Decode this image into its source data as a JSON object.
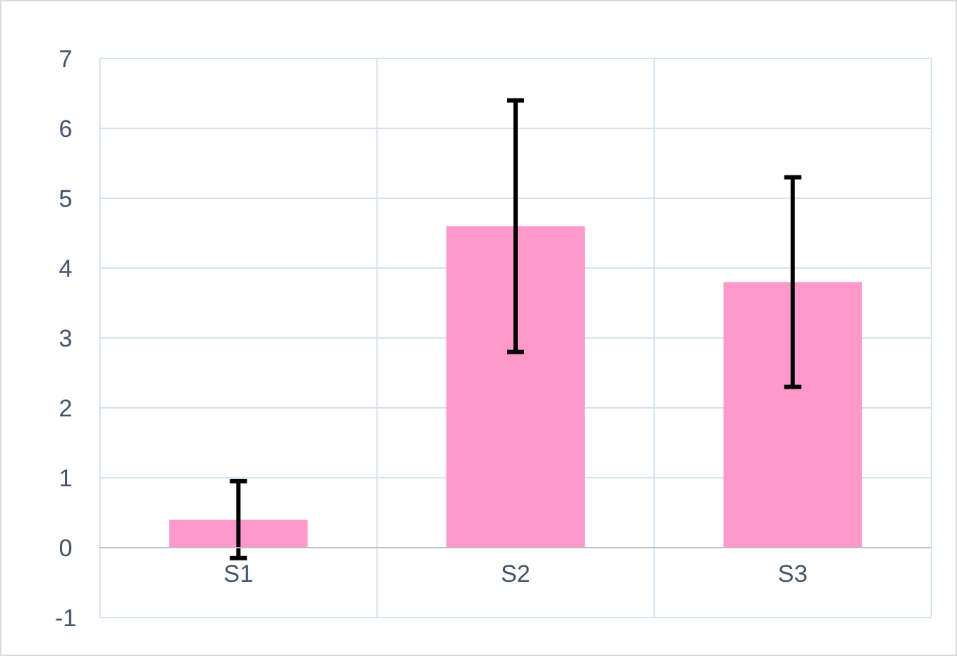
{
  "chart_data": {
    "type": "bar",
    "categories": [
      "S1",
      "S2",
      "S3"
    ],
    "values": [
      0.4,
      4.6,
      3.8
    ],
    "color": "#ff99cc",
    "errors": [
      0.55,
      1.8,
      1.5
    ],
    "ylim": [
      -1,
      7
    ],
    "yticks": [
      -1,
      0,
      1,
      2,
      3,
      4,
      5,
      6,
      7
    ],
    "grid": true
  }
}
